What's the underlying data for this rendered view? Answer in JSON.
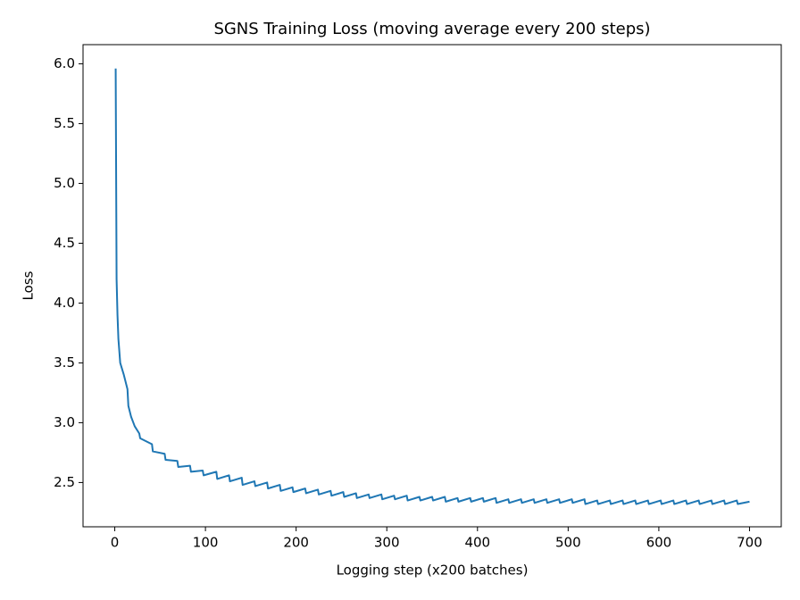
{
  "chart_data": {
    "type": "line",
    "title": "SGNS Training Loss (moving average every 200 steps)",
    "xlabel": "Logging step (x200 batches)",
    "ylabel": "Loss",
    "xlim": [
      -35,
      735
    ],
    "ylim": [
      2.13,
      6.16
    ],
    "xticks": [
      0,
      100,
      200,
      300,
      400,
      500,
      600,
      700
    ],
    "yticks": [
      2.5,
      {
        "value": 3.0,
        "label": "3.0"
      },
      3.5,
      {
        "value": 4.0,
        "label": "4.0"
      },
      4.5,
      {
        "value": 5.0,
        "label": "5.0"
      },
      5.5,
      {
        "value": 6.0,
        "label": "6.0"
      }
    ],
    "grid": false,
    "series": [
      {
        "color": "#1f77b4",
        "x": [
          1,
          2,
          3,
          4,
          6,
          10,
          14,
          15,
          18,
          22,
          27,
          28,
          41,
          42,
          55,
          56,
          69,
          70,
          83,
          84,
          97,
          98,
          112,
          113,
          126,
          127,
          140,
          141,
          154,
          155,
          168,
          169,
          182,
          183,
          196,
          197,
          210,
          211,
          224,
          225,
          238,
          239,
          252,
          253,
          266,
          267,
          280,
          281,
          294,
          295,
          308,
          309,
          322,
          323,
          336,
          337,
          350,
          351,
          364,
          365,
          378,
          379,
          392,
          393,
          406,
          407,
          420,
          421,
          434,
          435,
          448,
          449,
          462,
          463,
          476,
          477,
          490,
          491,
          504,
          505,
          518,
          519,
          532,
          533,
          546,
          547,
          560,
          561,
          574,
          575,
          588,
          589,
          602,
          603,
          616,
          617,
          630,
          631,
          644,
          645,
          658,
          659,
          672,
          673,
          686,
          687,
          700
        ],
        "values": [
          5.96,
          4.2,
          3.9,
          3.7,
          3.5,
          3.4,
          3.28,
          3.14,
          3.05,
          2.97,
          2.91,
          2.87,
          2.82,
          2.76,
          2.74,
          2.69,
          2.68,
          2.63,
          2.64,
          2.59,
          2.6,
          2.56,
          2.59,
          2.53,
          2.56,
          2.51,
          2.54,
          2.48,
          2.51,
          2.47,
          2.5,
          2.45,
          2.48,
          2.43,
          2.46,
          2.42,
          2.45,
          2.41,
          2.44,
          2.4,
          2.43,
          2.39,
          2.42,
          2.38,
          2.41,
          2.37,
          2.4,
          2.37,
          2.4,
          2.36,
          2.39,
          2.36,
          2.39,
          2.35,
          2.38,
          2.35,
          2.38,
          2.35,
          2.38,
          2.34,
          2.37,
          2.34,
          2.37,
          2.34,
          2.37,
          2.34,
          2.37,
          2.33,
          2.36,
          2.33,
          2.36,
          2.33,
          2.36,
          2.33,
          2.36,
          2.33,
          2.36,
          2.33,
          2.36,
          2.33,
          2.36,
          2.32,
          2.35,
          2.32,
          2.35,
          2.32,
          2.35,
          2.32,
          2.35,
          2.32,
          2.35,
          2.32,
          2.35,
          2.32,
          2.35,
          2.32,
          2.35,
          2.32,
          2.35,
          2.32,
          2.35,
          2.32,
          2.35,
          2.32,
          2.35,
          2.32,
          2.34
        ]
      }
    ]
  }
}
